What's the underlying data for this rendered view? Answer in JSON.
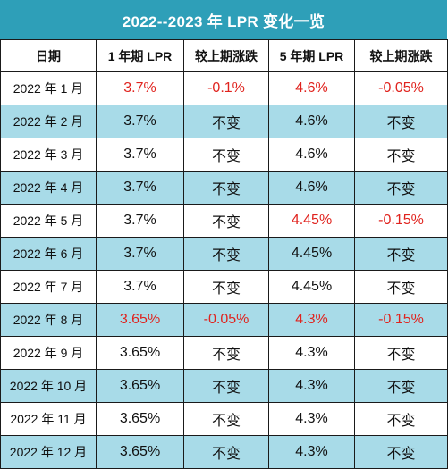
{
  "title": "2022--2023 年 LPR 变化一览",
  "headers": [
    "日期",
    "1 年期 LPR",
    "较上期涨跌",
    "5 年期 LPR",
    "较上期涨跌"
  ],
  "colors": {
    "title_bg": "#2e9fb8",
    "stripe": "#a8dbe8",
    "changed_text": "#e0231e"
  },
  "rows": [
    {
      "month": "2022 年 1 月",
      "lpr1": "3.7%",
      "chg1": "-0.1%",
      "lpr5": "4.6%",
      "chg5": "-0.05%",
      "hl1": true,
      "hl5": true
    },
    {
      "month": "2022 年 2 月",
      "lpr1": "3.7%",
      "chg1": "不变",
      "lpr5": "4.6%",
      "chg5": "不变",
      "hl1": false,
      "hl5": false
    },
    {
      "month": "2022 年 3 月",
      "lpr1": "3.7%",
      "chg1": "不变",
      "lpr5": "4.6%",
      "chg5": "不变",
      "hl1": false,
      "hl5": false
    },
    {
      "month": "2022 年 4 月",
      "lpr1": "3.7%",
      "chg1": "不变",
      "lpr5": "4.6%",
      "chg5": "不变",
      "hl1": false,
      "hl5": false
    },
    {
      "month": "2022 年 5 月",
      "lpr1": "3.7%",
      "chg1": "不变",
      "lpr5": "4.45%",
      "chg5": "-0.15%",
      "hl1": false,
      "hl5": true
    },
    {
      "month": "2022 年 6 月",
      "lpr1": "3.7%",
      "chg1": "不变",
      "lpr5": "4.45%",
      "chg5": "不变",
      "hl1": false,
      "hl5": false
    },
    {
      "month": "2022 年 7 月",
      "lpr1": "3.7%",
      "chg1": "不变",
      "lpr5": "4.45%",
      "chg5": "不变",
      "hl1": false,
      "hl5": false
    },
    {
      "month": "2022 年 8 月",
      "lpr1": "3.65%",
      "chg1": "-0.05%",
      "lpr5": "4.3%",
      "chg5": "-0.15%",
      "hl1": true,
      "hl5": true
    },
    {
      "month": "2022 年 9 月",
      "lpr1": "3.65%",
      "chg1": "不变",
      "lpr5": "4.3%",
      "chg5": "不变",
      "hl1": false,
      "hl5": false
    },
    {
      "month": "2022 年 10 月",
      "lpr1": "3.65%",
      "chg1": "不变",
      "lpr5": "4.3%",
      "chg5": "不变",
      "hl1": false,
      "hl5": false
    },
    {
      "month": "2022 年 11 月",
      "lpr1": "3.65%",
      "chg1": "不变",
      "lpr5": "4.3%",
      "chg5": "不变",
      "hl1": false,
      "hl5": false
    },
    {
      "month": "2022 年 12 月",
      "lpr1": "3.65%",
      "chg1": "不变",
      "lpr5": "4.3%",
      "chg5": "不变",
      "hl1": false,
      "hl5": false
    }
  ]
}
